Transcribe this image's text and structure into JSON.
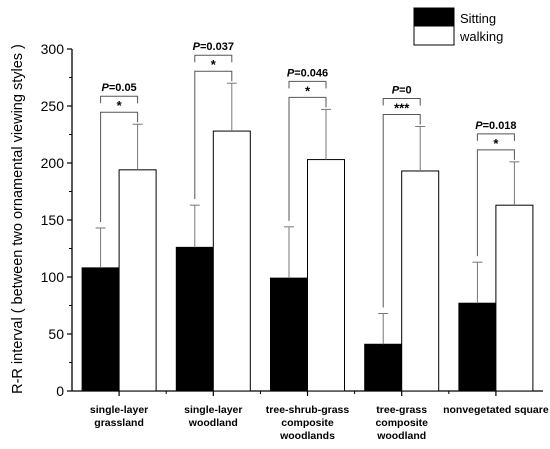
{
  "chart_data": {
    "type": "bar",
    "ylabel": "R-R interval ( between two ornamental viewing styles )",
    "ylim": [
      0,
      300
    ],
    "yticks": [
      0,
      50,
      100,
      150,
      200,
      250,
      300
    ],
    "categories": [
      [
        "single-layer",
        "grassland"
      ],
      [
        "single-layer",
        "woodland"
      ],
      [
        "tree-shrub-grass",
        "composite",
        "woodlands"
      ],
      [
        "tree-grass",
        "composite",
        "woodland"
      ],
      [
        "nonvegetated square"
      ]
    ],
    "series": [
      {
        "name": "Sitting",
        "color": "#000000",
        "values": [
          108,
          126,
          99,
          41,
          77
        ],
        "errors": [
          35,
          37,
          45,
          27,
          36
        ]
      },
      {
        "name": "walking",
        "color": "#ffffff",
        "values": [
          194,
          228,
          203,
          193,
          163
        ],
        "errors": [
          40,
          42,
          44,
          39,
          38
        ]
      }
    ],
    "annotations": [
      {
        "p": "=0.05",
        "stars": "*"
      },
      {
        "p": "=0.037",
        "stars": "*"
      },
      {
        "p": "=0.046",
        "stars": "*"
      },
      {
        "p": "=0",
        "stars": "***"
      },
      {
        "p": "=0.018",
        "stars": "*"
      }
    ],
    "p_symbol": "P",
    "legend_position": "top-right"
  }
}
